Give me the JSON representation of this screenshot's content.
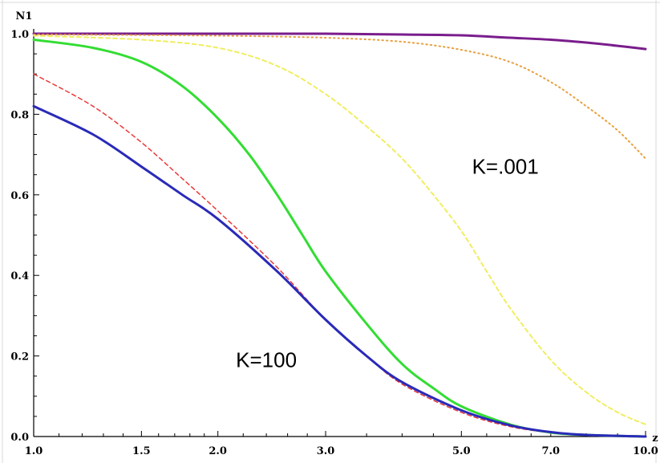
{
  "chart_data": {
    "type": "line",
    "xscale": "log",
    "xlim": [
      1.0,
      10.0
    ],
    "ylim": [
      0.0,
      1.0
    ],
    "xlabel": "z",
    "ylabel": "N1",
    "grid": false,
    "xticks": [
      {
        "value": 1.0,
        "label": "1.0"
      },
      {
        "value": 1.5,
        "label": "1.5"
      },
      {
        "value": 2.0,
        "label": "2.0"
      },
      {
        "value": 3.0,
        "label": "3.0"
      },
      {
        "value": 5.0,
        "label": "5.0"
      },
      {
        "value": 7.0,
        "label": "7.0"
      },
      {
        "value": 10.0,
        "label": "10.0"
      }
    ],
    "xminor": [
      1.1,
      1.2,
      1.3,
      1.4,
      1.6,
      1.7,
      1.8,
      1.9,
      2.2,
      2.4,
      2.6,
      2.8,
      3.5,
      4.0,
      4.5,
      5.5,
      6.0,
      6.5,
      8.0,
      9.0
    ],
    "yticks": [
      {
        "value": 0.0,
        "label": "0.0"
      },
      {
        "value": 0.2,
        "label": "0.2"
      },
      {
        "value": 0.4,
        "label": "0.4"
      },
      {
        "value": 0.6,
        "label": "0.6"
      },
      {
        "value": 0.8,
        "label": "0.8"
      },
      {
        "value": 1.0,
        "label": "1.0"
      }
    ],
    "series": [
      {
        "color": "#7a1d8c",
        "style": "solid",
        "width": 3,
        "x": [
          1.0,
          2.0,
          3.0,
          4.0,
          5.0,
          6.0,
          7.0,
          8.0,
          9.0,
          10.0
        ],
        "y": [
          1.0,
          1.0,
          1.0,
          0.998,
          0.996,
          0.99,
          0.985,
          0.978,
          0.97,
          0.962
        ]
      },
      {
        "color": "#e8a040",
        "style": "dotted",
        "width": 2,
        "x": [
          1.0,
          2.0,
          3.0,
          4.0,
          5.0,
          6.0,
          7.0,
          8.0,
          9.0,
          10.0
        ],
        "y": [
          0.998,
          0.995,
          0.99,
          0.98,
          0.96,
          0.93,
          0.88,
          0.82,
          0.76,
          0.69
        ]
      },
      {
        "color": "#f0ee60",
        "style": "dashed",
        "width": 2,
        "x": [
          1.0,
          1.5,
          2.0,
          2.5,
          3.0,
          3.5,
          4.0,
          4.5,
          5.0,
          5.5,
          6.0,
          7.0,
          8.0,
          9.0,
          10.0
        ],
        "y": [
          0.995,
          0.985,
          0.965,
          0.92,
          0.85,
          0.77,
          0.69,
          0.6,
          0.51,
          0.41,
          0.32,
          0.19,
          0.11,
          0.06,
          0.03
        ]
      },
      {
        "color": "#33dd33",
        "style": "solid",
        "width": 3,
        "x": [
          1.0,
          1.25,
          1.5,
          1.75,
          2.0,
          2.25,
          2.5,
          2.75,
          3.0,
          3.5,
          4.0,
          4.5,
          5.0,
          6.0,
          7.0,
          8.0,
          10.0
        ],
        "y": [
          0.985,
          0.965,
          0.93,
          0.87,
          0.79,
          0.7,
          0.6,
          0.5,
          0.41,
          0.28,
          0.18,
          0.12,
          0.075,
          0.03,
          0.01,
          0.004,
          0.0
        ]
      },
      {
        "color": "#e83a3a",
        "style": "dashed",
        "width": 1.5,
        "x": [
          1.0,
          1.25,
          1.5,
          1.75,
          2.0,
          2.5,
          3.0,
          3.5,
          4.0,
          5.0,
          6.0,
          7.0,
          8.0,
          10.0
        ],
        "y": [
          0.9,
          0.82,
          0.73,
          0.64,
          0.56,
          0.42,
          0.29,
          0.2,
          0.13,
          0.06,
          0.025,
          0.01,
          0.004,
          0.0
        ]
      },
      {
        "color": "#2a2ab8",
        "style": "solid",
        "width": 3,
        "x": [
          1.0,
          1.25,
          1.5,
          1.75,
          2.0,
          2.5,
          3.0,
          3.5,
          4.0,
          5.0,
          6.0,
          7.0,
          8.0,
          10.0
        ],
        "y": [
          0.82,
          0.75,
          0.67,
          0.6,
          0.54,
          0.41,
          0.29,
          0.2,
          0.135,
          0.065,
          0.028,
          0.011,
          0.004,
          0.0
        ]
      }
    ],
    "annotations": [
      {
        "text": "K=.001",
        "x": 5.9,
        "y": 0.67
      },
      {
        "text": "K=100",
        "x": 2.4,
        "y": 0.19
      }
    ]
  }
}
